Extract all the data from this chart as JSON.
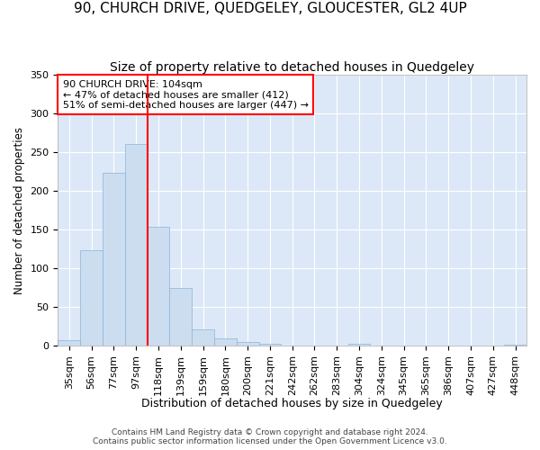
{
  "title": "90, CHURCH DRIVE, QUEDGELEY, GLOUCESTER, GL2 4UP",
  "subtitle": "Size of property relative to detached houses in Quedgeley",
  "xlabel": "Distribution of detached houses by size in Quedgeley",
  "ylabel": "Number of detached properties",
  "categories": [
    "35sqm",
    "56sqm",
    "77sqm",
    "97sqm",
    "118sqm",
    "139sqm",
    "159sqm",
    "180sqm",
    "200sqm",
    "221sqm",
    "242sqm",
    "262sqm",
    "283sqm",
    "304sqm",
    "324sqm",
    "345sqm",
    "365sqm",
    "386sqm",
    "407sqm",
    "427sqm",
    "448sqm"
  ],
  "values": [
    7,
    123,
    223,
    260,
    154,
    75,
    21,
    10,
    5,
    3,
    1,
    0,
    0,
    3,
    0,
    0,
    0,
    0,
    0,
    0,
    2
  ],
  "bar_color": "#ccddf0",
  "bar_edge_color": "#8ab4d8",
  "background_color": "#dce8f7",
  "grid_color": "#ffffff",
  "vline_x": 3.5,
  "vline_color": "red",
  "annotation_title": "90 CHURCH DRIVE: 104sqm",
  "annotation_line1": "← 47% of detached houses are smaller (412)",
  "annotation_line2": "51% of semi-detached houses are larger (447) →",
  "footer_line1": "Contains HM Land Registry data © Crown copyright and database right 2024.",
  "footer_line2": "Contains public sector information licensed under the Open Government Licence v3.0.",
  "ylim": [
    0,
    350
  ],
  "yticks": [
    0,
    50,
    100,
    150,
    200,
    250,
    300,
    350
  ],
  "title_fontsize": 11,
  "subtitle_fontsize": 10,
  "xlabel_fontsize": 9,
  "ylabel_fontsize": 8.5,
  "tick_fontsize": 8,
  "annot_fontsize": 8,
  "footer_fontsize": 6.5
}
